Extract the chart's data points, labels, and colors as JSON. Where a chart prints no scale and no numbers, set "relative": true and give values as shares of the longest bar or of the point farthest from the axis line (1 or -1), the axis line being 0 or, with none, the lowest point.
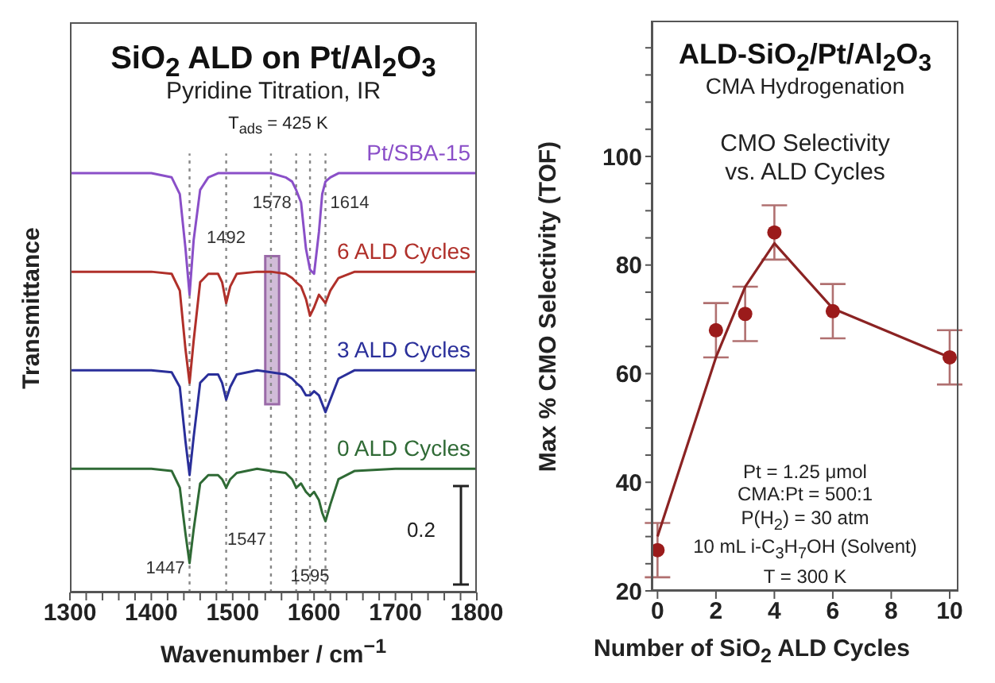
{
  "chart_data": [
    {
      "type": "line",
      "relative": true,
      "title": "SiO$_{2}$ ALD on Pt/Al$_{2}$O$_{3}$",
      "subtitle": "Pyridine Titration, IR",
      "xlabel": "Wavenumber / cm$^{−1}$",
      "ylabel": "Transmittance",
      "annotations": [
        "T$_{ads}$ = 425 K",
        "0.2"
      ],
      "tick_labels": "x",
      "line_style": "solid",
      "xlim": [
        1300,
        1800
      ],
      "xticks": [
        1300,
        {
          "value": 1320,
          "label": null
        },
        {
          "value": 1340,
          "label": null
        },
        {
          "value": 1360,
          "label": null
        },
        {
          "value": 1380,
          "label": null
        },
        1400,
        {
          "value": 1420,
          "label": null
        },
        {
          "value": 1440,
          "label": null
        },
        {
          "value": 1460,
          "label": null
        },
        {
          "value": 1480,
          "label": null
        },
        1500,
        {
          "value": 1520,
          "label": null
        },
        {
          "value": 1540,
          "label": null
        },
        {
          "value": 1560,
          "label": null
        },
        {
          "value": 1580,
          "label": null
        },
        1600,
        {
          "value": 1620,
          "label": null
        },
        {
          "value": 1640,
          "label": null
        },
        {
          "value": 1660,
          "label": null
        },
        {
          "value": 1680,
          "label": null
        },
        1700,
        {
          "value": 1720,
          "label": null
        },
        {
          "value": 1740,
          "label": null
        },
        {
          "value": 1760,
          "label": null
        },
        {
          "value": 1780,
          "label": null
        },
        1800
      ],
      "x": [
        1300,
        1350,
        1400,
        1425,
        1435,
        1442,
        1447,
        1452,
        1460,
        1470,
        1482,
        1487,
        1492,
        1497,
        1505,
        1530,
        1547,
        1565,
        1573,
        1578,
        1584,
        1590,
        1595,
        1600,
        1606,
        1610,
        1614,
        1620,
        1630,
        1650,
        1700,
        1750,
        1800
      ],
      "series": [
        {
          "name": "Pt/SBA-15",
          "color": "#8a4fc8",
          "values": [
            1,
            1,
            1,
            0.99,
            0.95,
            0.82,
            0.71,
            0.84,
            0.96,
            0.99,
            1,
            1,
            1,
            1,
            1,
            1,
            1,
            0.99,
            0.98,
            0.96,
            0.93,
            0.82,
            0.77,
            0.76,
            0.86,
            0.95,
            0.98,
            0.99,
            1,
            1,
            1,
            1,
            1
          ]
        },
        {
          "name": "6 ALD Cycles",
          "color": "#b0302a",
          "values": [
            0.765,
            0.765,
            0.765,
            0.76,
            0.72,
            0.58,
            0.5,
            0.6,
            0.74,
            0.76,
            0.76,
            0.74,
            0.69,
            0.73,
            0.76,
            0.765,
            0.765,
            0.76,
            0.75,
            0.74,
            0.73,
            0.7,
            0.66,
            0.68,
            0.71,
            0.7,
            0.69,
            0.72,
            0.75,
            0.765,
            0.765,
            0.765,
            0.765
          ]
        },
        {
          "name": "3 ALD Cycles",
          "color": "#2a2f9a",
          "values": [
            0.53,
            0.53,
            0.53,
            0.525,
            0.49,
            0.36,
            0.28,
            0.37,
            0.5,
            0.52,
            0.52,
            0.5,
            0.46,
            0.49,
            0.52,
            0.53,
            0.525,
            0.52,
            0.51,
            0.5,
            0.49,
            0.47,
            0.47,
            0.48,
            0.47,
            0.45,
            0.43,
            0.46,
            0.51,
            0.53,
            0.53,
            0.53,
            0.53
          ]
        },
        {
          "name": "0 ALD Cycles",
          "color": "#2f6a35",
          "values": [
            0.295,
            0.295,
            0.295,
            0.29,
            0.25,
            0.14,
            0.07,
            0.15,
            0.26,
            0.28,
            0.28,
            0.27,
            0.25,
            0.27,
            0.285,
            0.295,
            0.29,
            0.285,
            0.27,
            0.25,
            0.26,
            0.24,
            0.23,
            0.24,
            0.22,
            0.19,
            0.17,
            0.21,
            0.27,
            0.29,
            0.295,
            0.295,
            0.295
          ]
        }
      ],
      "ref_lines": [
        {
          "axis": "x",
          "value": 1447,
          "label": "1447",
          "color": "#888888",
          "line_style": "dotted"
        },
        {
          "axis": "x",
          "value": 1492,
          "label": "1492",
          "color": "#888888",
          "line_style": "dotted"
        },
        {
          "axis": "x",
          "value": 1547,
          "label": "1547",
          "color": "#888888",
          "line_style": "dotted"
        },
        {
          "axis": "x",
          "value": 1578,
          "label": "1578",
          "color": "#888888",
          "line_style": "dotted"
        },
        {
          "axis": "x",
          "value": 1595,
          "label": "1595",
          "color": "#888888",
          "line_style": "dotted"
        },
        {
          "axis": "x",
          "value": 1614,
          "label": "1614",
          "color": "#888888",
          "line_style": "dotted"
        }
      ],
      "bands": [
        {
          "axis": "x",
          "from": 1540,
          "to": 1557,
          "color": "#9a6aa8"
        }
      ]
    },
    {
      "type": "scatter",
      "title": "ALD-SiO$_{2}$/Pt/Al$_{2}$O$_{3}$",
      "subtitle": "CMA Hydrogenation",
      "xlabel": "Number of SiO$_{2}$ ALD Cycles",
      "ylabel": "Max % CMO Selectivity (TOF)",
      "annotations": [
        "CMO Selectivity\nvs. ALD Cycles",
        "Pt = 1.25 μmol\nCMA:Pt = 500:1\nP(H$_{2}$) = 30 atm\n10 mL i-C$_{3}$H$_{7}$OH (Solvent)\nT = 300 K"
      ],
      "marker": "circle",
      "xlim": [
        -0.2,
        10.3
      ],
      "xticks": [
        0,
        2,
        4,
        6,
        8,
        10
      ],
      "ylim": [
        20,
        125
      ],
      "yticks": [
        20,
        {
          "value": 25,
          "label": null
        },
        {
          "value": 30,
          "label": null
        },
        {
          "value": 35,
          "label": null
        },
        40,
        {
          "value": 45,
          "label": null
        },
        {
          "value": 50,
          "label": null
        },
        {
          "value": 55,
          "label": null
        },
        60,
        {
          "value": 65,
          "label": null
        },
        {
          "value": 70,
          "label": null
        },
        {
          "value": 75,
          "label": null
        },
        80,
        {
          "value": 85,
          "label": null
        },
        {
          "value": 90,
          "label": null
        },
        {
          "value": 95,
          "label": null
        },
        100,
        {
          "value": 105,
          "label": null
        },
        {
          "value": 110,
          "label": null
        },
        {
          "value": 115,
          "label": null
        },
        {
          "value": 120,
          "label": null
        }
      ],
      "series": [
        {
          "type": "scatter",
          "color": "#9b1b1b",
          "x": [
            0,
            2,
            3,
            4,
            6,
            10
          ],
          "values": [
            27.5,
            68,
            71,
            86,
            71.5,
            63
          ],
          "errors": [
            5,
            5,
            5,
            5,
            5,
            5
          ]
        },
        {
          "type": "line",
          "color": "#8b2323",
          "marker": "none",
          "x": [
            0,
            2,
            3,
            4,
            6,
            10
          ],
          "values": [
            30,
            63,
            76,
            84,
            72,
            63
          ]
        }
      ]
    }
  ]
}
